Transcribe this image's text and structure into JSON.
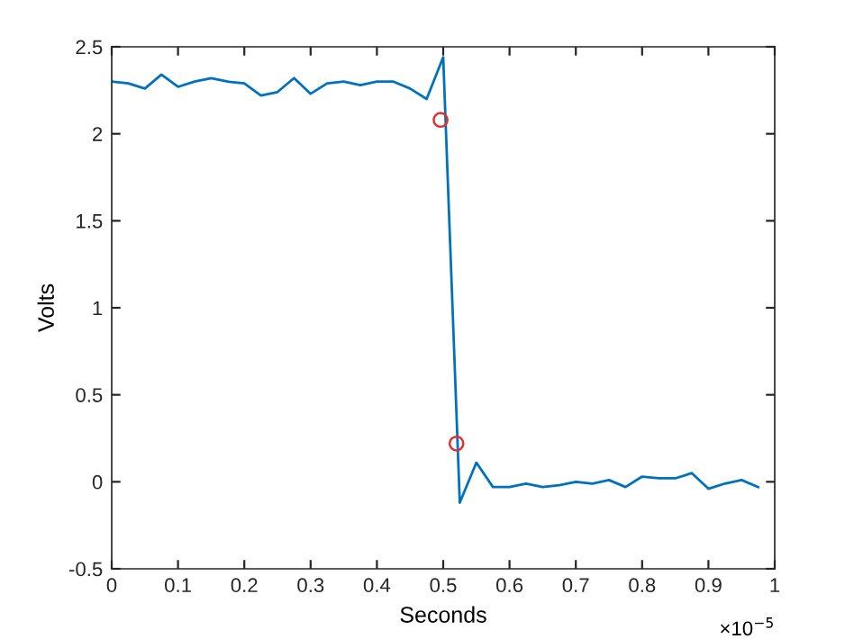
{
  "chart_data": {
    "type": "line",
    "xlabel": "Seconds",
    "ylabel": "Volts",
    "annotations": [
      "×10$^{−5}$"
    ],
    "series": [
      {
        "color": "#0072bd",
        "marker": "none",
        "x": [
          0,
          0.025,
          0.05,
          0.075,
          0.1,
          0.125,
          0.15,
          0.175,
          0.2,
          0.225,
          0.25,
          0.275,
          0.3,
          0.325,
          0.35,
          0.375,
          0.4,
          0.425,
          0.45,
          0.475,
          0.5,
          0.525,
          0.55,
          0.575,
          0.6,
          0.625,
          0.65,
          0.675,
          0.7,
          0.725,
          0.75,
          0.775,
          0.8,
          0.825,
          0.85,
          0.875,
          0.9,
          0.925,
          0.95,
          0.975
        ],
        "values": [
          2.3,
          2.29,
          2.26,
          2.34,
          2.27,
          2.3,
          2.32,
          2.3,
          2.29,
          2.22,
          2.24,
          2.32,
          2.23,
          2.29,
          2.3,
          2.28,
          2.3,
          2.3,
          2.26,
          2.2,
          2.44,
          -0.12,
          0.11,
          -0.03,
          -0.03,
          -0.01,
          -0.03,
          -0.02,
          0.0,
          -0.01,
          0.01,
          -0.03,
          0.03,
          0.02,
          0.02,
          0.05,
          -0.04,
          -0.01,
          0.01,
          -0.03
        ]
      },
      {
        "type": "scatter",
        "color": "#e03030",
        "marker": "circle",
        "x": [
          0.496,
          0.52
        ],
        "values": [
          2.08,
          0.22
        ]
      }
    ],
    "xlim": [
      0,
      1
    ],
    "ylim": [
      -0.5,
      2.5
    ],
    "xticks": [
      0,
      0.1,
      0.2,
      0.3,
      0.4,
      0.5,
      0.6,
      0.7,
      0.8,
      0.9,
      1
    ],
    "yticks": [
      -0.5,
      0,
      0.5,
      1,
      1.5,
      2,
      2.5
    ],
    "grid": false,
    "legend": false
  }
}
